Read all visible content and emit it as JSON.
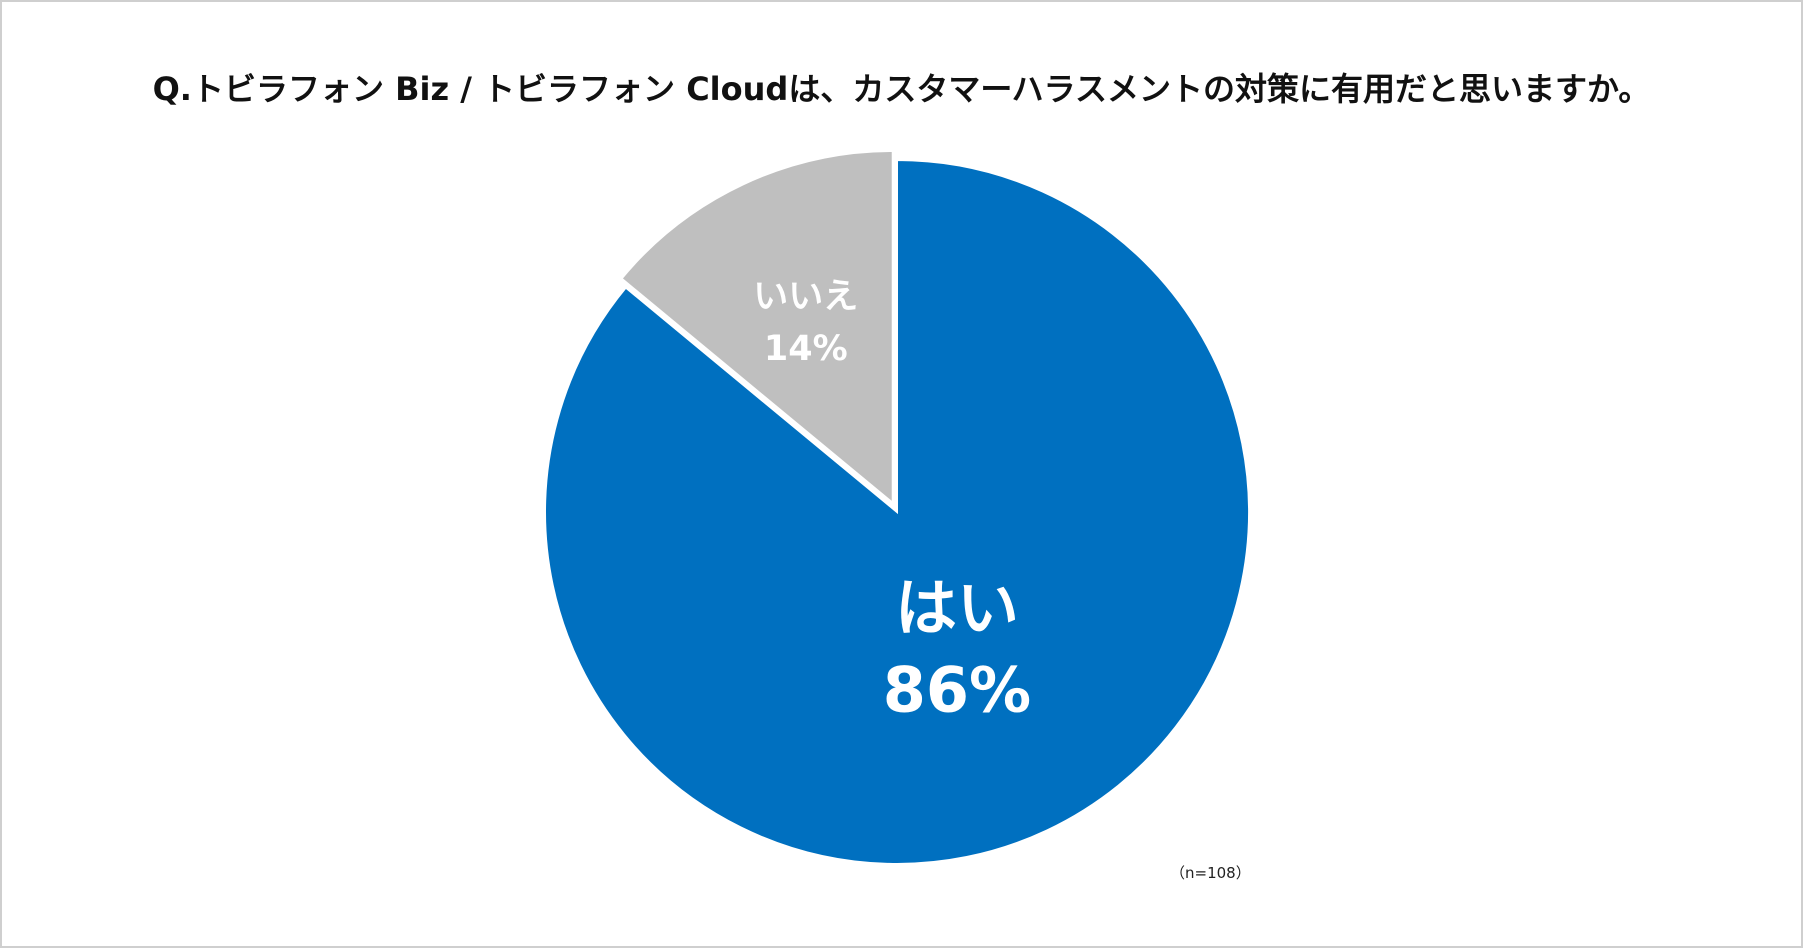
{
  "chart_data": {
    "type": "pie",
    "title": "Q.トビラフォン Biz / トビラフォン Cloudは、カスタマーハラスメントの対策に有用だと思いますか。",
    "note": "（n=108）",
    "slices": [
      {
        "label": "はい",
        "value": 86,
        "value_label": "86%",
        "color": "#0070c0"
      },
      {
        "label": "いいえ",
        "value": 14,
        "value_label": "14%",
        "color": "#bfbfbf"
      }
    ],
    "start": "12 o'clock",
    "direction": "clockwise",
    "legend": "none"
  }
}
